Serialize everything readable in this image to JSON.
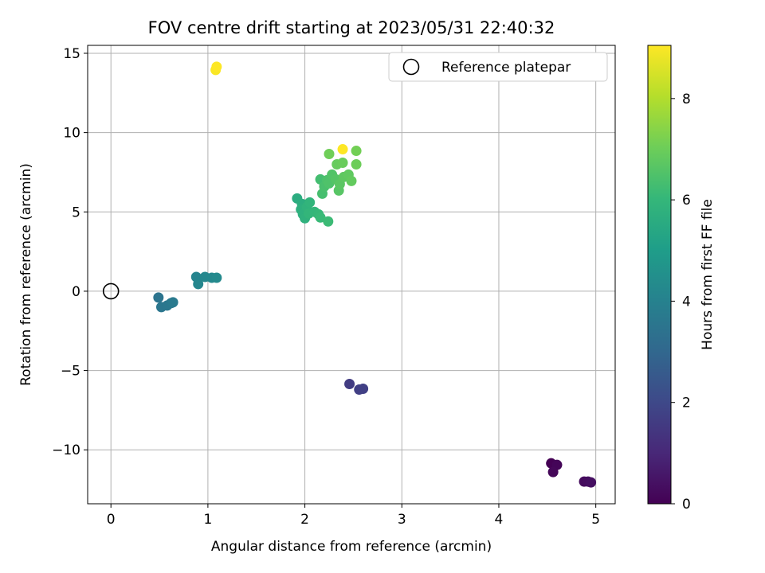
{
  "chart_data": {
    "type": "scatter",
    "title": "FOV centre drift starting at 2023/05/31 22:40:32",
    "xlabel": "Angular distance from reference (arcmin)",
    "ylabel": "Rotation from reference (arcmin)",
    "xlim": [
      -0.24,
      5.2
    ],
    "ylim": [
      -13.4,
      15.5
    ],
    "xticks": [
      0,
      1,
      2,
      3,
      4,
      5
    ],
    "xtick_labels": [
      "0",
      "1",
      "2",
      "3",
      "4",
      "5"
    ],
    "yticks": [
      -10,
      -5,
      0,
      5,
      10,
      15
    ],
    "ytick_labels": [
      "−10",
      "−5",
      "0",
      "5",
      "10",
      "15"
    ],
    "grid": true,
    "legend": {
      "placement": "top-right",
      "entries": [
        {
          "label": "Reference platepar",
          "marker": "open-circle"
        }
      ]
    },
    "reference_point": {
      "x": 0,
      "y": 0
    },
    "colorbar": {
      "label": "Hours from first FF file",
      "range": [
        0,
        9.05
      ],
      "ticks": [
        0,
        2,
        4,
        6,
        8
      ],
      "tick_labels": [
        "0",
        "2",
        "4",
        "6",
        "8"
      ],
      "colormap": "viridis",
      "colors": [
        "#440154",
        "#482878",
        "#3e4989",
        "#31688e",
        "#26828e",
        "#1f9e89",
        "#35b779",
        "#6ece58",
        "#b5de2b",
        "#fde725"
      ]
    },
    "points": [
      {
        "x": 4.54,
        "y": -10.85,
        "h": 0.0
      },
      {
        "x": 4.6,
        "y": -10.95,
        "h": 0.1
      },
      {
        "x": 4.56,
        "y": -11.4,
        "h": 0.15
      },
      {
        "x": 4.88,
        "y": -12.0,
        "h": 0.25
      },
      {
        "x": 4.92,
        "y": -12.0,
        "h": 0.3
      },
      {
        "x": 4.95,
        "y": -12.05,
        "h": 0.35
      },
      {
        "x": 2.46,
        "y": -5.85,
        "h": 1.6
      },
      {
        "x": 2.56,
        "y": -6.2,
        "h": 1.7
      },
      {
        "x": 2.6,
        "y": -6.15,
        "h": 1.75
      },
      {
        "x": 0.49,
        "y": -0.4,
        "h": 3.5
      },
      {
        "x": 0.52,
        "y": -1.0,
        "h": 3.55
      },
      {
        "x": 0.58,
        "y": -0.9,
        "h": 3.6
      },
      {
        "x": 0.62,
        "y": -0.75,
        "h": 3.65
      },
      {
        "x": 0.64,
        "y": -0.7,
        "h": 3.7
      },
      {
        "x": 0.88,
        "y": 0.9,
        "h": 4.1
      },
      {
        "x": 0.9,
        "y": 0.45,
        "h": 4.15
      },
      {
        "x": 0.97,
        "y": 0.9,
        "h": 4.2
      },
      {
        "x": 1.04,
        "y": 0.85,
        "h": 4.25
      },
      {
        "x": 1.09,
        "y": 0.85,
        "h": 4.3
      },
      {
        "x": 1.92,
        "y": 5.85,
        "h": 5.6
      },
      {
        "x": 1.97,
        "y": 5.5,
        "h": 5.65
      },
      {
        "x": 1.96,
        "y": 5.15,
        "h": 5.7
      },
      {
        "x": 1.98,
        "y": 4.85,
        "h": 5.75
      },
      {
        "x": 2.0,
        "y": 4.6,
        "h": 5.8
      },
      {
        "x": 2.02,
        "y": 5.3,
        "h": 5.85
      },
      {
        "x": 2.05,
        "y": 5.6,
        "h": 5.9
      },
      {
        "x": 2.04,
        "y": 4.9,
        "h": 5.95
      },
      {
        "x": 2.1,
        "y": 5.0,
        "h": 6.0
      },
      {
        "x": 2.14,
        "y": 4.85,
        "h": 6.05
      },
      {
        "x": 2.16,
        "y": 4.65,
        "h": 6.1
      },
      {
        "x": 2.24,
        "y": 4.4,
        "h": 6.15
      },
      {
        "x": 2.16,
        "y": 7.05,
        "h": 6.3
      },
      {
        "x": 2.18,
        "y": 6.15,
        "h": 6.35
      },
      {
        "x": 2.2,
        "y": 6.6,
        "h": 6.4
      },
      {
        "x": 2.23,
        "y": 7.0,
        "h": 6.45
      },
      {
        "x": 2.25,
        "y": 6.8,
        "h": 6.5
      },
      {
        "x": 2.28,
        "y": 7.35,
        "h": 6.55
      },
      {
        "x": 2.32,
        "y": 7.05,
        "h": 6.6
      },
      {
        "x": 2.35,
        "y": 6.35,
        "h": 6.65
      },
      {
        "x": 2.36,
        "y": 6.75,
        "h": 6.7
      },
      {
        "x": 2.4,
        "y": 7.2,
        "h": 6.75
      },
      {
        "x": 2.45,
        "y": 7.35,
        "h": 6.8
      },
      {
        "x": 2.48,
        "y": 6.95,
        "h": 6.85
      },
      {
        "x": 2.33,
        "y": 8.0,
        "h": 6.9
      },
      {
        "x": 2.39,
        "y": 8.1,
        "h": 6.95
      },
      {
        "x": 2.53,
        "y": 8.0,
        "h": 7.0
      },
      {
        "x": 2.25,
        "y": 8.65,
        "h": 7.05
      },
      {
        "x": 2.53,
        "y": 8.85,
        "h": 7.1
      },
      {
        "x": 2.39,
        "y": 8.95,
        "h": 9.05
      },
      {
        "x": 1.08,
        "y": 13.95,
        "h": 9.0
      },
      {
        "x": 1.09,
        "y": 14.15,
        "h": 9.05
      }
    ]
  }
}
